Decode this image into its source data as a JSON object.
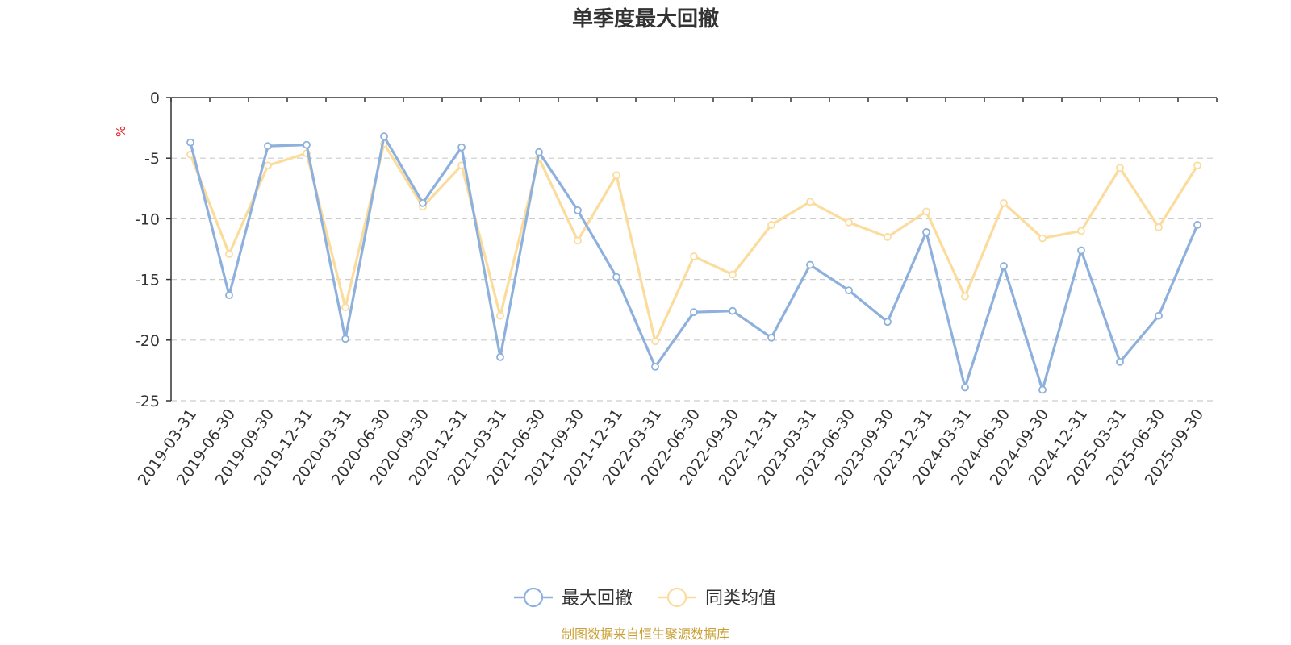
{
  "chart_data": {
    "type": "line",
    "title": "单季度最大回撤",
    "ylabel": "%",
    "ylim": [
      -25,
      0
    ],
    "yticks": [
      0,
      -5,
      -10,
      -15,
      -20,
      -25
    ],
    "grid": true,
    "legend_position": "bottom-center",
    "categories": [
      "2019-03-31",
      "2019-06-30",
      "2019-09-30",
      "2019-12-31",
      "2020-03-31",
      "2020-06-30",
      "2020-09-30",
      "2020-12-31",
      "2021-03-31",
      "2021-06-30",
      "2021-09-30",
      "2021-12-31",
      "2022-03-31",
      "2022-06-30",
      "2022-09-30",
      "2022-12-31",
      "2023-03-31",
      "2023-06-30",
      "2023-09-30",
      "2023-12-31",
      "2024-03-31",
      "2024-06-30",
      "2024-09-30",
      "2024-12-31",
      "2025-03-31",
      "2025-06-30",
      "2025-09-30"
    ],
    "series": [
      {
        "name": "最大回撤",
        "color": "#8eb0dc",
        "values": [
          -3.7,
          -16.3,
          -4.0,
          -3.9,
          -19.9,
          -3.2,
          -8.7,
          -4.1,
          -21.4,
          -4.5,
          -9.3,
          -14.8,
          -22.2,
          -17.7,
          -17.6,
          -19.8,
          -13.8,
          -15.9,
          -18.5,
          -11.1,
          -23.9,
          -13.9,
          -24.1,
          -12.6,
          -21.8,
          -18.0,
          -10.5
        ]
      },
      {
        "name": "同类均值",
        "color": "#fbdc9c",
        "values": [
          -4.7,
          -12.9,
          -5.6,
          -4.6,
          -17.3,
          -3.8,
          -9.0,
          -5.6,
          -18.0,
          -5.0,
          -11.8,
          -6.4,
          -20.1,
          -13.1,
          -14.6,
          -10.5,
          -8.6,
          -10.3,
          -11.5,
          -9.4,
          -16.4,
          -8.7,
          -11.6,
          -11.0,
          -5.8,
          -10.7,
          -5.6
        ]
      }
    ]
  },
  "footer": {
    "source_text": "制图数据来自恒生聚源数据库",
    "source_color": "#c9a035"
  }
}
